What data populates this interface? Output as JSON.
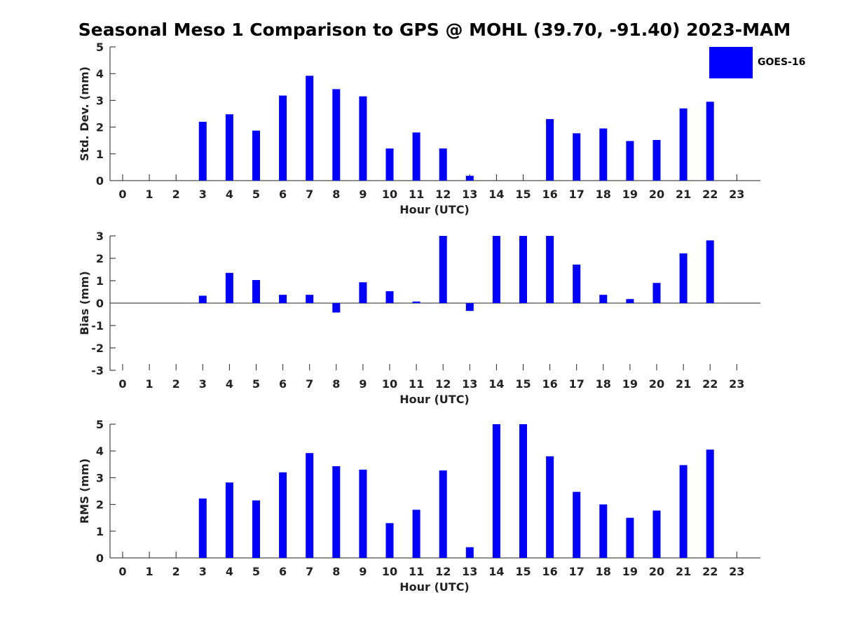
{
  "title": "Seasonal Meso 1 Comparison to GPS @ MOHL (39.70, -91.40) 2023-MAM",
  "legend": {
    "label": "GOES-16",
    "color": "#0000ff"
  },
  "chart_data": [
    {
      "type": "bar",
      "title": "",
      "xlabel": "Hour (UTC)",
      "ylabel": "Std. Dev. (mm)",
      "categories": [
        "0",
        "1",
        "2",
        "3",
        "4",
        "5",
        "6",
        "7",
        "8",
        "9",
        "10",
        "11",
        "12",
        "13",
        "14",
        "15",
        "16",
        "17",
        "18",
        "19",
        "20",
        "21",
        "22",
        "23"
      ],
      "values": [
        null,
        null,
        null,
        2.2,
        2.48,
        1.87,
        3.18,
        3.92,
        3.42,
        3.15,
        1.2,
        1.8,
        1.2,
        0.18,
        null,
        null,
        2.3,
        1.77,
        1.95,
        1.48,
        1.52,
        2.7,
        2.95,
        null
      ],
      "ylim": [
        0,
        5
      ],
      "yticks": [
        "0",
        "1",
        "2",
        "3",
        "4",
        "5"
      ],
      "series_name": "GOES-16"
    },
    {
      "type": "bar",
      "title": "",
      "xlabel": "Hour (UTC)",
      "ylabel": "Bias (mm)",
      "categories": [
        "0",
        "1",
        "2",
        "3",
        "4",
        "5",
        "6",
        "7",
        "8",
        "9",
        "10",
        "11",
        "12",
        "13",
        "14",
        "15",
        "16",
        "17",
        "18",
        "19",
        "20",
        "21",
        "22",
        "23"
      ],
      "values": [
        null,
        null,
        null,
        0.33,
        1.35,
        1.03,
        0.37,
        0.37,
        -0.42,
        0.93,
        0.53,
        0.07,
        3.0,
        -0.35,
        3.0,
        3.0,
        3.0,
        1.72,
        0.37,
        0.18,
        0.9,
        2.22,
        2.8,
        null
      ],
      "ylim": [
        -3,
        3
      ],
      "yticks": [
        "-3",
        "-2",
        "-1",
        "0",
        "1",
        "2",
        "3"
      ],
      "series_name": "GOES-16"
    },
    {
      "type": "bar",
      "title": "",
      "xlabel": "Hour (UTC)",
      "ylabel": "RMS (mm)",
      "categories": [
        "0",
        "1",
        "2",
        "3",
        "4",
        "5",
        "6",
        "7",
        "8",
        "9",
        "10",
        "11",
        "12",
        "13",
        "14",
        "15",
        "16",
        "17",
        "18",
        "19",
        "20",
        "21",
        "22",
        "23"
      ],
      "values": [
        null,
        null,
        null,
        2.22,
        2.82,
        2.15,
        3.2,
        3.92,
        3.43,
        3.3,
        1.3,
        1.8,
        3.27,
        0.4,
        5.0,
        5.0,
        3.8,
        2.47,
        2.0,
        1.5,
        1.77,
        3.47,
        4.05,
        null
      ],
      "ylim": [
        0,
        5
      ],
      "yticks": [
        "0",
        "1",
        "2",
        "3",
        "4",
        "5"
      ],
      "series_name": "GOES-16"
    }
  ]
}
